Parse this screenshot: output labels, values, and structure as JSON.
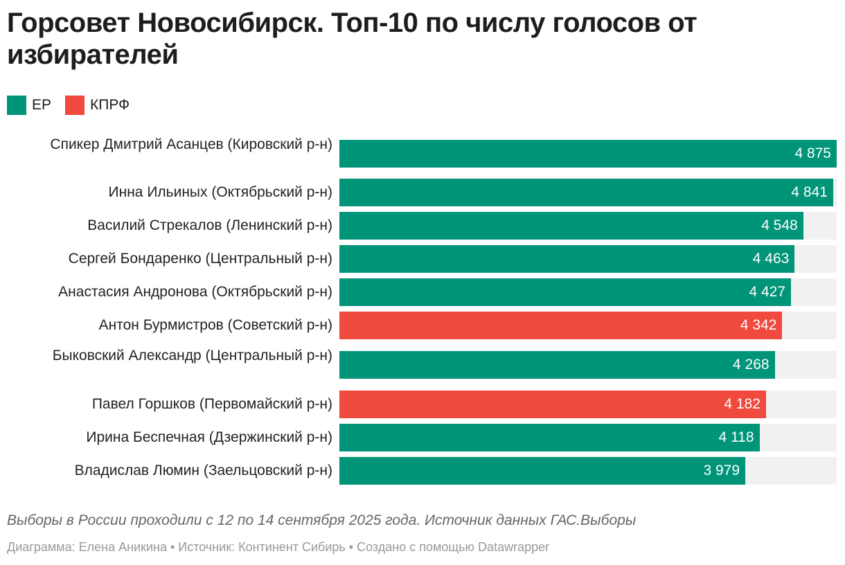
{
  "title": "Горсовет Новосибирск. Топ-10 по числу голосов от избирателей",
  "legend": [
    {
      "label": "ЕР",
      "color": "#009479"
    },
    {
      "label": "КПРФ",
      "color": "#f0493e"
    }
  ],
  "chart_data": {
    "type": "bar",
    "orientation": "horizontal",
    "title": "Горсовет Новосибирск. Топ-10 по числу голосов от избирателей",
    "xlim": [
      0,
      4875
    ],
    "categories": [
      "Спикер Дмитрий Асанцев (Кировский р-н)",
      "Инна Ильиных (Октябрьский р-н)",
      "Василий Стрекалов (Ленинский р-н)",
      "Сергей Бондаренко (Центральный р-н)",
      "Анастасия Андронова (Октябрьский р-н)",
      "Антон Бурмистров (Советский р-н)",
      "Быковский Александр (Центральный р-н)",
      "Павел Горшков (Первомайский р-н)",
      "Ирина Беспечная (Дзержинский р-н)",
      "Владислав Люмин (Заельцовский р-н)"
    ],
    "values": [
      4875,
      4841,
      4548,
      4463,
      4427,
      4342,
      4268,
      4182,
      4118,
      3979
    ],
    "value_labels": [
      "4 875",
      "4 841",
      "4 548",
      "4 463",
      "4 427",
      "4 342",
      "4 268",
      "4 182",
      "4 118",
      "3 979"
    ],
    "party": [
      "ЕР",
      "ЕР",
      "ЕР",
      "ЕР",
      "ЕР",
      "КПРФ",
      "ЕР",
      "КПРФ",
      "ЕР",
      "ЕР"
    ]
  },
  "note": "Выборы в России проходили с 12 по 14 сентября 2025 года. Источник данных ГАС.Выборы",
  "credit": "Диаграмма: Елена Аникина • Источник: Континент Сибирь • Создано с помощью Datawrapper"
}
